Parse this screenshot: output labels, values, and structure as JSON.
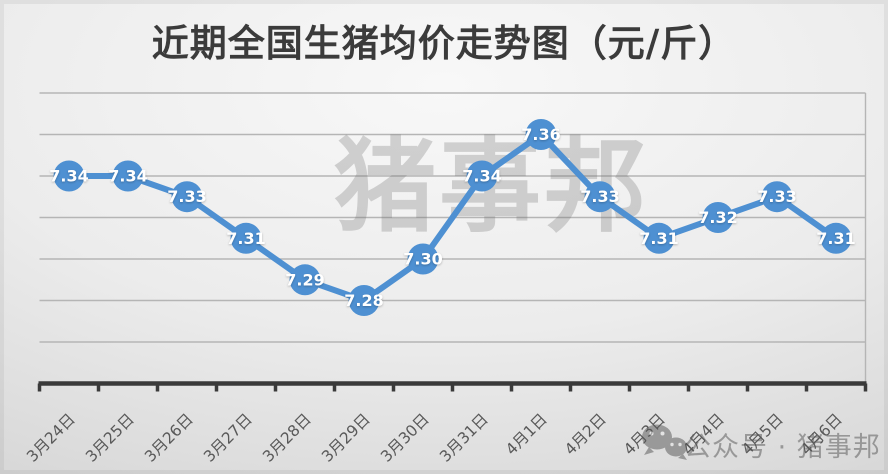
{
  "title": "近期全国生猪均价走势图（元/斤）",
  "chart_data": {
    "type": "line",
    "title": "近期全国生猪均价走势图（元/斤）",
    "unit": "元/斤",
    "categories": [
      "3月24日",
      "3月25日",
      "3月26日",
      "3月27日",
      "3月28日",
      "3月29日",
      "3月30日",
      "3月31日",
      "4月1日",
      "4月2日",
      "4月3日",
      "4月4日",
      "4月5日",
      "4月6日"
    ],
    "values": [
      7.34,
      7.34,
      7.33,
      7.31,
      7.29,
      7.28,
      7.3,
      7.34,
      7.36,
      7.33,
      7.31,
      7.32,
      7.33,
      7.31
    ],
    "data_label_format": "0.00",
    "xlabel": "",
    "ylabel": "",
    "ylim": [
      7.24,
      7.38
    ],
    "y_grid_interval": 0.02,
    "grid": true,
    "y_tick_labels_visible": false,
    "legend_position": "none",
    "x_tick_label_rotation": -45
  },
  "watermarks": {
    "center_text": "猪事邦",
    "bottom_icon": "wechat-icon",
    "bottom_text": "公众号 · 猪事邦"
  },
  "colors": {
    "line": "#4e90d2",
    "marker": "#4e90d2",
    "data_label": "#ffffff",
    "gridline": "#b5b5b5",
    "axis": "#3a3a3a",
    "tick_label": "#595959",
    "title_text": "#3b3b3b",
    "watermark_center": "#6f6f6f",
    "watermark_bottom": "#555555",
    "background_light": "#f8f8f8",
    "background_dark": "#cbcbcb"
  }
}
